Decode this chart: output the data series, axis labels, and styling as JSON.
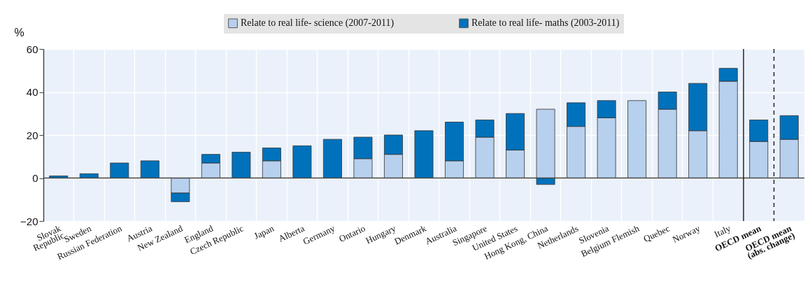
{
  "chart_data": {
    "type": "bar",
    "stacked": true,
    "ylabel": "%",
    "legend": "top",
    "grid": true,
    "categories": [
      "Slovak\nRepublic",
      "Sweden",
      "Russian Federation",
      "Austria",
      "New Zealand",
      "England",
      "Czech Republic",
      "Japan",
      "Alberta",
      "Germany",
      "Ontario",
      "Hungary",
      "Denmark",
      "Australia",
      "Singapore",
      "United States",
      "Hong Kong, China",
      "Netherlands",
      "Slovenia",
      "Belgium Flemish",
      "Quebec",
      "Norway",
      "Italy",
      "OECD mean",
      "OECD mean\n(abs. change)"
    ],
    "series": [
      {
        "name": "Relate to real life- science (2007-2011)",
        "color": "#b7d0ee",
        "values": [
          null,
          null,
          null,
          null,
          -7,
          7,
          null,
          8,
          null,
          null,
          9,
          11,
          null,
          8,
          19,
          13,
          32,
          24,
          28,
          36,
          32,
          22,
          45,
          17,
          18
        ]
      },
      {
        "name": "Relate to real life- maths (2003-2011)",
        "color": "#0072bc",
        "values": [
          1,
          2,
          7,
          8,
          -4,
          4,
          12,
          6,
          15,
          18,
          10,
          9,
          22,
          18,
          8,
          17,
          -3,
          11,
          8,
          null,
          8,
          22,
          6,
          10,
          11
        ]
      }
    ],
    "ylim": [
      -20,
      60
    ],
    "yticks": [
      -20,
      0,
      20,
      40,
      60
    ],
    "ref_lines": [
      {
        "axis": "x",
        "value": "Italy",
        "line_style": "solid"
      },
      {
        "axis": "x",
        "value": "OECD mean",
        "line_style": "dashed"
      }
    ]
  }
}
